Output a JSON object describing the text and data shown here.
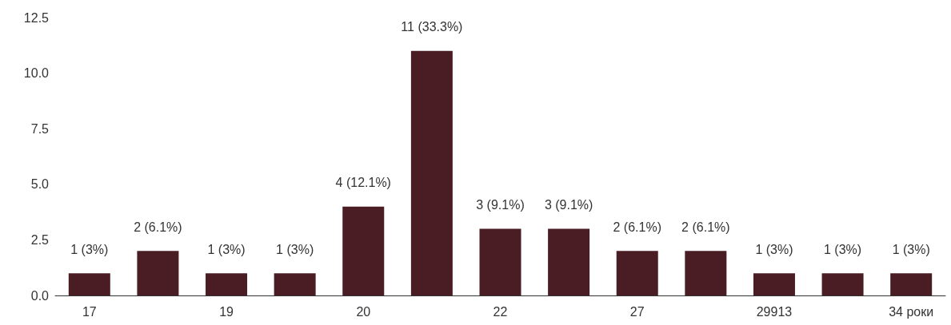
{
  "chart_data": {
    "type": "bar",
    "categories": [
      "17",
      null,
      "19",
      null,
      "20",
      null,
      "22",
      null,
      "27",
      null,
      "29913",
      null,
      "34 роки"
    ],
    "values": [
      1,
      2,
      1,
      1,
      4,
      11,
      3,
      3,
      2,
      2,
      1,
      1,
      1
    ],
    "value_labels": [
      "1 (3%)",
      "2 (6.1%)",
      "1 (3%)",
      "1 (3%)",
      "4 (12.1%)",
      "11 (33.3%)",
      "3 (9.1%)",
      "3 (9.1%)",
      "2 (6.1%)",
      "2 (6.1%)",
      "1 (3%)",
      "1 (3%)",
      "1 (3%)"
    ],
    "color": "#4a1c23",
    "ylim": [
      0,
      12.5
    ],
    "yticks": [
      {
        "value": 0,
        "label": "0.0"
      },
      {
        "value": 2.5,
        "label": "2.5"
      },
      {
        "value": 5,
        "label": "5.0"
      },
      {
        "value": 7.5,
        "label": "7.5"
      },
      {
        "value": 10,
        "label": "10.0"
      },
      {
        "value": 12.5,
        "label": "12.5"
      }
    ],
    "grid": false
  }
}
